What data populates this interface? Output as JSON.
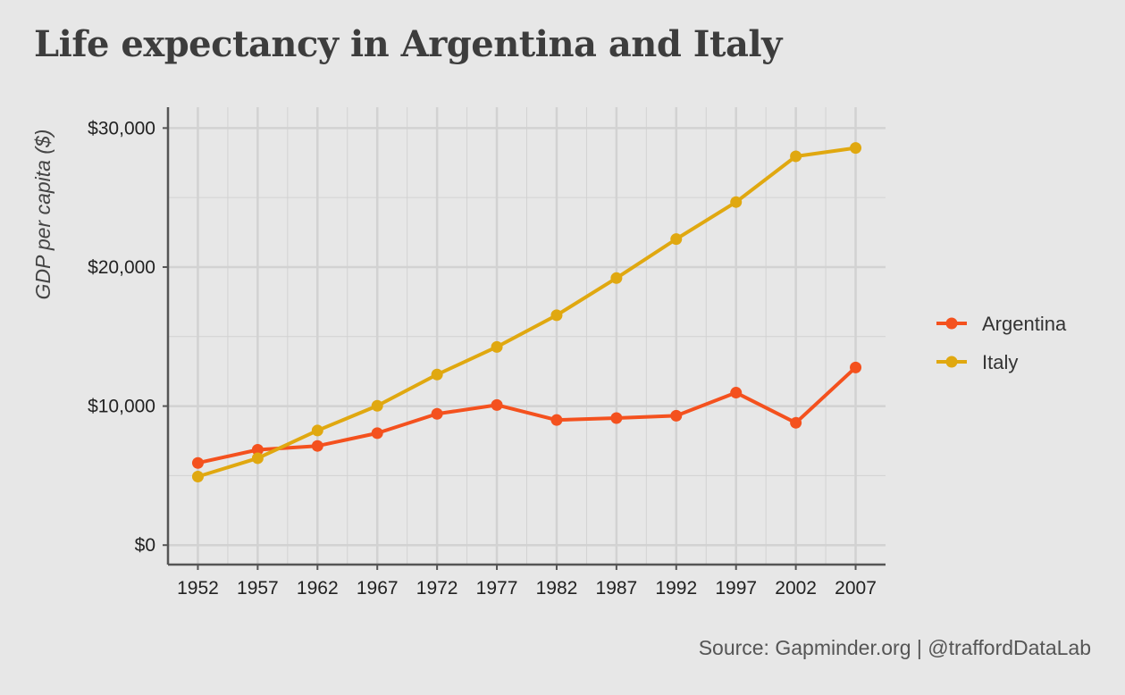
{
  "title": "Life expectancy in Argentina and Italy",
  "caption": "Source: Gapminder.org  |  @traffordDataLab",
  "colors": {
    "background": "#e7e7e7",
    "grid": "#d2d2d2",
    "axis": "#555555",
    "Argentina": "#f4511e",
    "Italy": "#e0a810"
  },
  "chart_data": {
    "type": "line",
    "title": "Life expectancy in Argentina and Italy",
    "xlabel": "",
    "ylabel": "GDP per capita ($)",
    "x": [
      1952,
      1957,
      1962,
      1967,
      1972,
      1977,
      1982,
      1987,
      1992,
      1997,
      2002,
      2007
    ],
    "xticks": [
      "1952",
      "1957",
      "1962",
      "1967",
      "1972",
      "1977",
      "1982",
      "1987",
      "1992",
      "1997",
      "2002",
      "2007"
    ],
    "yticks": [
      0,
      10000,
      20000,
      30000
    ],
    "ytick_labels": [
      "$0",
      "$10,000",
      "$20,000",
      "$30,000"
    ],
    "ylim": [
      -1400,
      31500
    ],
    "xlim": [
      1949.5,
      2009.5
    ],
    "grid": true,
    "markers": true,
    "legend_position": "right",
    "series": [
      {
        "name": "Argentina",
        "values": [
          5911,
          6857,
          7133,
          8053,
          9443,
          10079,
          8998,
          9140,
          9308,
          10967,
          8798,
          12779
        ]
      },
      {
        "name": "Italy",
        "values": [
          4931,
          6249,
          8244,
          10022,
          12270,
          14256,
          16537,
          19208,
          22014,
          24675,
          27968,
          28570
        ]
      }
    ]
  }
}
